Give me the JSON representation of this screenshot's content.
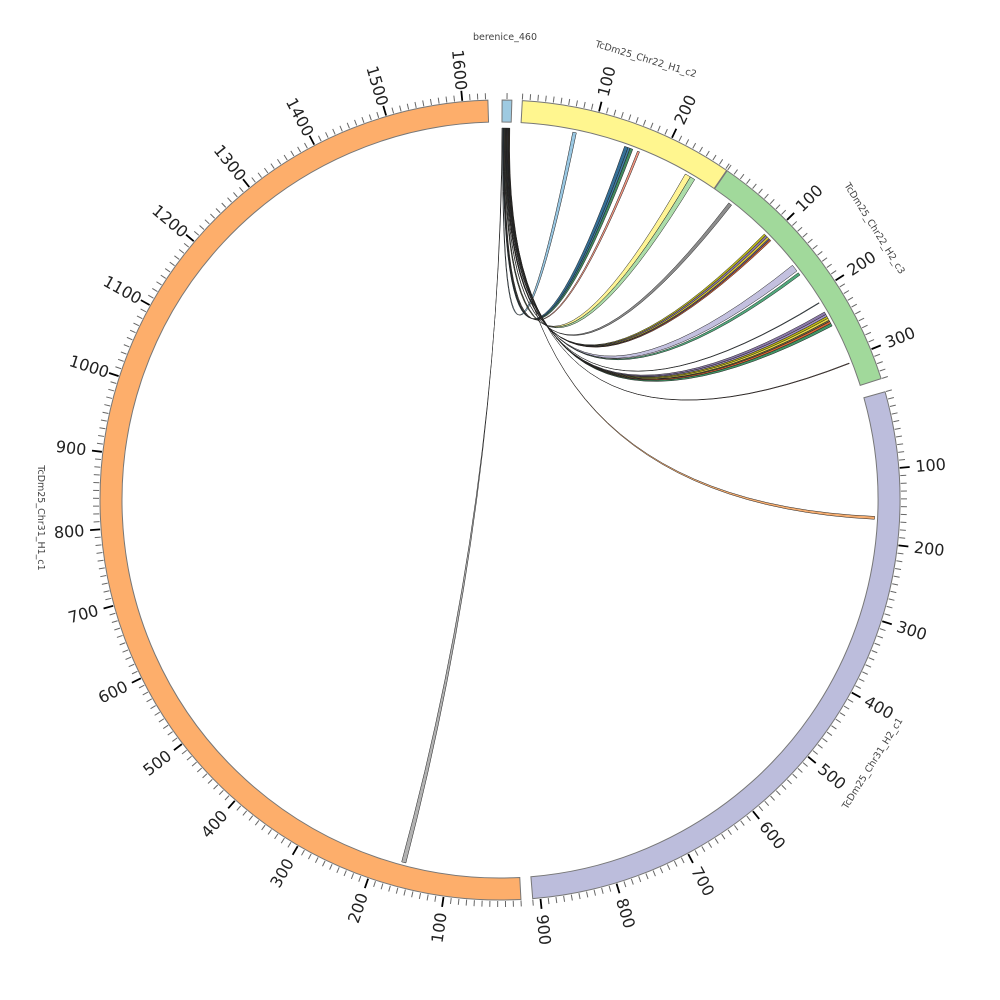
{
  "chart_data": {
    "type": "chord",
    "title": "",
    "tick_major_interval": 100,
    "tick_minor_interval": 10,
    "chromosomes": [
      {
        "id": "berenice",
        "label": "berenice_460",
        "length": 460,
        "color": "#9ecae1"
      },
      {
        "id": "c22h1",
        "label": "TcDm25_Chr22_H1_c2",
        "length": 282,
        "color": "#fff68f"
      },
      {
        "id": "c22h2",
        "label": "TcDm25_Chr22_H2_c3",
        "length": 340,
        "color": "#a1d99b"
      },
      {
        "id": "c31h2",
        "label": "TcDm25_Chr31_H2_c1",
        "length": 910,
        "color": "#bcbddc"
      },
      {
        "id": "c31h1",
        "label": "TcDm25_Chr31_H1_c1",
        "length": 1633,
        "color": "#fdae6b"
      }
    ],
    "links": [
      {
        "source": [
          30,
          60
        ],
        "target": "c22h1",
        "range": [
          72,
          77
        ],
        "color": "#8ec1df"
      },
      {
        "source": [
          60,
          90
        ],
        "target": "c22h1",
        "range": [
          146,
          151
        ],
        "color": "#1f5f8b"
      },
      {
        "source": [
          90,
          110
        ],
        "target": "c22h1",
        "range": [
          151,
          154
        ],
        "color": "#2a6f9a"
      },
      {
        "source": [
          110,
          130
        ],
        "target": "c22h1",
        "range": [
          154,
          158
        ],
        "color": "#2e7d4f"
      },
      {
        "source": [
          130,
          150
        ],
        "target": "c22h1",
        "range": [
          165,
          168
        ],
        "color": "#f08a73"
      },
      {
        "source": [
          150,
          170
        ],
        "target": "c22h1",
        "range": [
          238,
          246
        ],
        "color": "#fff38a"
      },
      {
        "source": [
          170,
          190
        ],
        "target": "c22h1",
        "range": [
          246,
          253
        ],
        "color": "#a3d9a0"
      },
      {
        "source": [
          190,
          210
        ],
        "target": "c22h2",
        "range": [
          27,
          32
        ],
        "color": "#7f7f7f"
      },
      {
        "source": [
          210,
          222
        ],
        "target": "c22h2",
        "range": [
          92,
          95
        ],
        "color": "#b5b000"
      },
      {
        "source": [
          222,
          234
        ],
        "target": "c22h2",
        "range": [
          95,
          98
        ],
        "color": "#7e6aa0"
      },
      {
        "source": [
          234,
          246
        ],
        "target": "c22h2",
        "range": [
          98,
          101
        ],
        "color": "#d4c020"
      },
      {
        "source": [
          246,
          256
        ],
        "target": "c22h2",
        "range": [
          101,
          103
        ],
        "color": "#5a4a7a"
      },
      {
        "source": [
          256,
          266
        ],
        "target": "c22h2",
        "range": [
          103,
          105
        ],
        "color": "#d9541e"
      },
      {
        "source": [
          266,
          290
        ],
        "target": "c22h2",
        "range": [
          150,
          160
        ],
        "color": "#bdb9db"
      },
      {
        "source": [
          290,
          302
        ],
        "target": "c22h2",
        "range": [
          163,
          167
        ],
        "color": "#3e9e6e"
      },
      {
        "source": [
          302,
          306
        ],
        "target": "c22h2",
        "range": [
          213,
          214
        ],
        "color": "#3b5a6a"
      },
      {
        "source": [
          306,
          318
        ],
        "target": "c22h2",
        "range": [
          228,
          232
        ],
        "color": "#7e6aa0"
      },
      {
        "source": [
          318,
          328
        ],
        "target": "c22h2",
        "range": [
          232,
          235
        ],
        "color": "#9a86c0"
      },
      {
        "source": [
          328,
          338
        ],
        "target": "c22h2",
        "range": [
          235,
          238
        ],
        "color": "#b5b000"
      },
      {
        "source": [
          338,
          348
        ],
        "target": "c22h2",
        "range": [
          238,
          241
        ],
        "color": "#e8d830"
      },
      {
        "source": [
          348,
          358
        ],
        "target": "c22h2",
        "range": [
          241,
          243
        ],
        "color": "#6b5a30"
      },
      {
        "source": [
          358,
          368
        ],
        "target": "c22h2",
        "range": [
          243,
          246
        ],
        "color": "#d9541e"
      },
      {
        "source": [
          368,
          380
        ],
        "target": "c22h2",
        "range": [
          246,
          250
        ],
        "color": "#2e8b57"
      },
      {
        "source": [
          380,
          384
        ],
        "target": "c22h2",
        "range": [
          306,
          307
        ],
        "color": "#6b3a2a"
      },
      {
        "source": [
          384,
          400
        ],
        "target": "c31h2",
        "range": [
          164,
          168
        ],
        "color": "#f4a460"
      },
      {
        "source": [
          0,
          30
        ],
        "target": "c31h1",
        "range": [
          158,
          164
        ],
        "color": "#a9a9a9"
      }
    ]
  }
}
